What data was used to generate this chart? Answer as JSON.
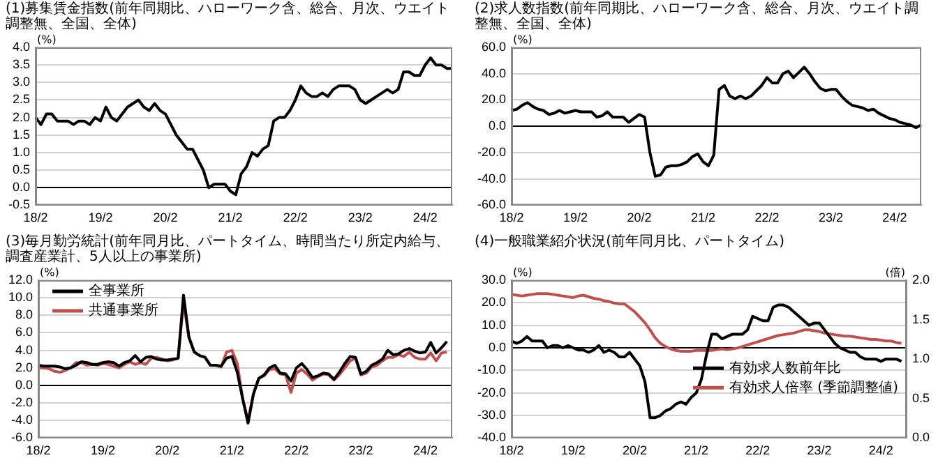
{
  "chart_data": [
    {
      "type": "line",
      "title": "(1)募集賃金指数(前年同期比、ハローワーク含、総合、月次、ウエイト調整無、全国、全体)",
      "ylabel": "(%)",
      "grid": "y",
      "categories": [
        "18/2",
        null,
        null,
        null,
        null,
        null,
        null,
        null,
        null,
        null,
        null,
        null,
        "19/2",
        null,
        null,
        null,
        null,
        null,
        null,
        null,
        null,
        null,
        null,
        null,
        "20/2",
        null,
        null,
        null,
        null,
        null,
        null,
        null,
        null,
        null,
        null,
        null,
        "21/2",
        null,
        null,
        null,
        null,
        null,
        null,
        null,
        null,
        null,
        null,
        null,
        "22/2",
        null,
        null,
        null,
        null,
        null,
        null,
        null,
        null,
        null,
        null,
        null,
        "23/2",
        null,
        null,
        null,
        null,
        null,
        null,
        null,
        null,
        null,
        null,
        null,
        "24/2",
        null,
        null,
        null,
        null,
        null
      ],
      "ylim": [
        -0.5,
        4.0
      ],
      "yticks": [
        {
          "value": -0.5,
          "label": "-0.5"
        },
        {
          "value": 0,
          "label": "0.0"
        },
        {
          "value": 0.5,
          "label": "0.5"
        },
        {
          "value": 1,
          "label": "1.0"
        },
        {
          "value": 1.5,
          "label": "1.5"
        },
        {
          "value": 2,
          "label": "2.0"
        },
        {
          "value": 2.5,
          "label": "2.5"
        },
        {
          "value": 3,
          "label": "3.0"
        },
        {
          "value": 3.5,
          "label": "3.5"
        },
        {
          "value": 4,
          "label": "4.0"
        }
      ],
      "series": [
        {
          "color": "#000000",
          "values": [
            2.0,
            1.8,
            2.1,
            2.1,
            1.9,
            1.9,
            1.9,
            1.8,
            1.9,
            1.9,
            1.8,
            2.0,
            1.9,
            2.3,
            2.0,
            1.9,
            2.1,
            2.3,
            2.4,
            2.5,
            2.3,
            2.2,
            2.4,
            2.2,
            2.1,
            1.8,
            1.5,
            1.3,
            1.1,
            1.1,
            0.8,
            0.5,
            0.0,
            0.1,
            0.1,
            0.1,
            -0.1,
            -0.2,
            0.4,
            0.6,
            1.0,
            0.9,
            1.1,
            1.2,
            1.9,
            2.0,
            2.0,
            2.2,
            2.5,
            2.9,
            2.7,
            2.6,
            2.6,
            2.7,
            2.6,
            2.8,
            2.9,
            2.9,
            2.9,
            2.8,
            2.5,
            2.4,
            2.5,
            2.6,
            2.7,
            2.8,
            2.7,
            2.8,
            3.3,
            3.3,
            3.2,
            3.2,
            3.5,
            3.7,
            3.5,
            3.5,
            3.4,
            3.4
          ]
        }
      ]
    },
    {
      "type": "line",
      "title": "(2)求人数指数(前年同期比、ハローワーク含、総合、月次、ウエイト調整無、全国、全体)",
      "ylabel": "(%)",
      "grid": "y",
      "categories": [
        "18/2",
        null,
        null,
        null,
        null,
        null,
        null,
        null,
        null,
        null,
        null,
        null,
        "19/2",
        null,
        null,
        null,
        null,
        null,
        null,
        null,
        null,
        null,
        null,
        null,
        "20/2",
        null,
        null,
        null,
        null,
        null,
        null,
        null,
        null,
        null,
        null,
        null,
        "21/2",
        null,
        null,
        null,
        null,
        null,
        null,
        null,
        null,
        null,
        null,
        null,
        "22/2",
        null,
        null,
        null,
        null,
        null,
        null,
        null,
        null,
        null,
        null,
        null,
        "23/2",
        null,
        null,
        null,
        null,
        null,
        null,
        null,
        null,
        null,
        null,
        null,
        "24/2",
        null,
        null,
        null,
        null,
        null
      ],
      "ylim": [
        -60,
        60
      ],
      "yticks": [
        {
          "value": -60,
          "label": "-60.0"
        },
        {
          "value": -40,
          "label": "-40.0"
        },
        {
          "value": -20,
          "label": "-20.0"
        },
        {
          "value": 0,
          "label": "0.0"
        },
        {
          "value": 20,
          "label": "20.0"
        },
        {
          "value": 40,
          "label": "40.0"
        },
        {
          "value": 60,
          "label": "60.0"
        }
      ],
      "series": [
        {
          "color": "#000000",
          "values": [
            12,
            13,
            16,
            18,
            15,
            13,
            12,
            9,
            10,
            12,
            10,
            11,
            12,
            11,
            11,
            11,
            7,
            8,
            11,
            7,
            7,
            7,
            3,
            6,
            9,
            7,
            -20,
            -38,
            -37,
            -31,
            -30,
            -30,
            -29,
            -27,
            -23,
            -21,
            -27,
            -30,
            -22,
            28,
            31,
            23,
            21,
            23,
            21,
            23,
            27,
            31,
            37,
            33,
            33,
            40,
            42,
            37,
            41,
            45,
            40,
            34,
            29,
            27,
            28,
            28,
            23,
            19,
            16,
            15,
            14,
            12,
            13,
            10,
            8,
            6,
            5,
            3,
            2,
            1,
            -1,
            1
          ]
        }
      ]
    },
    {
      "type": "line",
      "title": "(3)毎月勤労統計(前年同月比、パートタイム、時間当たり所定内給与、調査産業計、5人以上の事業所)",
      "ylabel": "(%)",
      "grid": "y",
      "legend": "top left",
      "categories": [
        "18/2",
        null,
        null,
        null,
        null,
        null,
        null,
        null,
        null,
        null,
        null,
        null,
        "19/2",
        null,
        null,
        null,
        null,
        null,
        null,
        null,
        null,
        null,
        null,
        null,
        "20/2",
        null,
        null,
        null,
        null,
        null,
        null,
        null,
        null,
        null,
        null,
        null,
        "21/2",
        null,
        null,
        null,
        null,
        null,
        null,
        null,
        null,
        null,
        null,
        null,
        "22/2",
        null,
        null,
        null,
        null,
        null,
        null,
        null,
        null,
        null,
        null,
        null,
        "23/2",
        null,
        null,
        null,
        null,
        null,
        null,
        null,
        null,
        null,
        null,
        null,
        "24/2",
        null,
        null,
        null,
        null,
        null
      ],
      "ylim": [
        -6,
        12
      ],
      "yticks": [
        {
          "value": -6,
          "label": "-6.0"
        },
        {
          "value": -4,
          "label": "-4.0"
        },
        {
          "value": -2,
          "label": "-2.0"
        },
        {
          "value": 0,
          "label": "0.0"
        },
        {
          "value": 2,
          "label": "2.0"
        },
        {
          "value": 4,
          "label": "4.0"
        },
        {
          "value": 6,
          "label": "6.0"
        },
        {
          "value": 8,
          "label": "8.0"
        },
        {
          "value": 10,
          "label": "10.0"
        },
        {
          "value": 12,
          "label": "12.0"
        }
      ],
      "series": [
        {
          "name": "全事業所",
          "color": "#000000",
          "values": [
            2.3,
            2.2,
            2.2,
            2.2,
            2.1,
            1.9,
            2.0,
            2.3,
            2.7,
            2.6,
            2.4,
            2.4,
            2.6,
            2.7,
            2.6,
            2.2,
            2.6,
            2.8,
            3.4,
            2.7,
            3.2,
            3.3,
            3.0,
            2.9,
            2.9,
            3.0,
            3.1,
            10.3,
            5.5,
            3.8,
            3.4,
            3.2,
            2.3,
            2.3,
            2.2,
            3.1,
            3.3,
            1.5,
            -1.5,
            -4.3,
            -1.0,
            0.8,
            1.2,
            2.0,
            2.3,
            1.4,
            1.3,
            0.5,
            2.0,
            2.5,
            1.8,
            0.9,
            1.1,
            1.4,
            1.3,
            0.7,
            1.5,
            2.5,
            3.3,
            3.2,
            1.3,
            1.6,
            2.3,
            2.6,
            3.0,
            4.0,
            3.5,
            3.6,
            4.0,
            4.2,
            3.9,
            3.7,
            3.8,
            4.9,
            3.7,
            4.3,
            5.0,
            null
          ]
        },
        {
          "name": "共通事業所",
          "color": "#c0504d",
          "values": [
            2.0,
            2.0,
            1.9,
            1.6,
            1.5,
            1.7,
            2.0,
            2.6,
            2.6,
            2.3,
            2.4,
            2.3,
            2.5,
            2.4,
            2.2,
            2.0,
            2.4,
            2.7,
            2.4,
            2.6,
            2.4,
            3.1,
            3.2,
            3.0,
            2.8,
            2.9,
            3.1,
            9.5,
            5.5,
            3.8,
            3.4,
            3.2,
            2.3,
            2.3,
            2.1,
            3.8,
            4.0,
            2.5,
            -1.5,
            -4.0,
            -1.0,
            0.8,
            1.1,
            1.8,
            1.9,
            1.3,
            1.2,
            -0.8,
            1.4,
            1.8,
            1.3,
            0.6,
            1.0,
            1.3,
            1.2,
            0.6,
            1.2,
            2.0,
            2.8,
            3.1,
            1.2,
            1.4,
            2.1,
            2.3,
            2.8,
            3.2,
            3.2,
            3.5,
            3.3,
            3.8,
            3.2,
            3.0,
            3.0,
            3.7,
            2.8,
            3.7,
            3.8,
            null
          ]
        }
      ]
    },
    {
      "type": "line",
      "title": "(4)一般職業紹介状況(前年同月比、パートタイム)",
      "ylabel": "(%)",
      "y2label": "(倍)",
      "grid": "y",
      "legend": "right",
      "categories": [
        "18/2",
        null,
        null,
        null,
        null,
        null,
        null,
        null,
        null,
        null,
        null,
        null,
        "19/2",
        null,
        null,
        null,
        null,
        null,
        null,
        null,
        null,
        null,
        null,
        null,
        "20/2",
        null,
        null,
        null,
        null,
        null,
        null,
        null,
        null,
        null,
        null,
        null,
        "21/2",
        null,
        null,
        null,
        null,
        null,
        null,
        null,
        null,
        null,
        null,
        null,
        "22/2",
        null,
        null,
        null,
        null,
        null,
        null,
        null,
        null,
        null,
        null,
        null,
        "23/2",
        null,
        null,
        null,
        null,
        null,
        null,
        null,
        null,
        null,
        null,
        null,
        "24/2",
        null,
        null,
        null,
        null,
        null
      ],
      "ylim": [
        -40,
        30
      ],
      "yticks": [
        {
          "value": -40,
          "label": "-40.0"
        },
        {
          "value": -30,
          "label": "-30.0"
        },
        {
          "value": -20,
          "label": "-20.0"
        },
        {
          "value": -10,
          "label": "-10.0"
        },
        {
          "value": 0,
          "label": "0.0"
        },
        {
          "value": 10,
          "label": "10.0"
        },
        {
          "value": 20,
          "label": "20.0"
        },
        {
          "value": 30,
          "label": "30.0"
        }
      ],
      "y2lim": [
        0,
        2
      ],
      "y2ticks": [
        {
          "value": 0,
          "label": "0.0"
        },
        {
          "value": 0.5,
          "label": "0.5"
        },
        {
          "value": 1,
          "label": "1.0"
        },
        {
          "value": 1.5,
          "label": "1.5"
        },
        {
          "value": 2,
          "label": "2.0"
        }
      ],
      "series": [
        {
          "name": "有効求人数前年比",
          "color": "#000000",
          "values": [
            3,
            2,
            3,
            5,
            3,
            3,
            3,
            0,
            1,
            1,
            0,
            1,
            0,
            -1,
            -1,
            -2,
            -1,
            1,
            -2,
            -1,
            -2,
            -4,
            -4,
            -2,
            -5,
            -8,
            -15,
            -31,
            -31,
            -30,
            -28,
            -27,
            -25,
            -24,
            -25,
            -22,
            -20,
            -14,
            -3,
            6,
            6,
            4,
            5,
            6,
            6,
            6,
            8,
            14,
            13,
            12,
            12,
            18,
            19,
            19,
            18,
            16,
            14,
            12,
            10,
            11,
            11,
            8,
            5,
            2,
            0,
            -1,
            -2,
            -2,
            -4,
            -5,
            -5,
            -5,
            -6,
            -5,
            -5,
            -5,
            -6,
            null
          ]
        },
        {
          "name": "有効求人倍率 (季節調整値)",
          "color": "#c0504d",
          "axis": "y2",
          "values": [
            1.82,
            1.81,
            1.8,
            1.81,
            1.82,
            1.83,
            1.83,
            1.83,
            1.82,
            1.81,
            1.8,
            1.79,
            1.78,
            1.8,
            1.81,
            1.79,
            1.77,
            1.76,
            1.74,
            1.73,
            1.71,
            1.7,
            1.7,
            1.65,
            1.6,
            1.53,
            1.46,
            1.37,
            1.27,
            1.2,
            1.16,
            1.13,
            1.11,
            1.1,
            1.1,
            1.1,
            1.11,
            1.11,
            1.11,
            1.11,
            1.12,
            1.13,
            1.12,
            1.13,
            1.14,
            1.16,
            1.18,
            1.2,
            1.22,
            1.24,
            1.26,
            1.28,
            1.3,
            1.31,
            1.32,
            1.33,
            1.35,
            1.37,
            1.37,
            1.36,
            1.35,
            1.33,
            1.32,
            1.31,
            1.3,
            1.29,
            1.29,
            1.28,
            1.27,
            1.26,
            1.25,
            1.25,
            1.24,
            1.23,
            1.23,
            1.21,
            1.2,
            null
          ]
        }
      ]
    }
  ]
}
